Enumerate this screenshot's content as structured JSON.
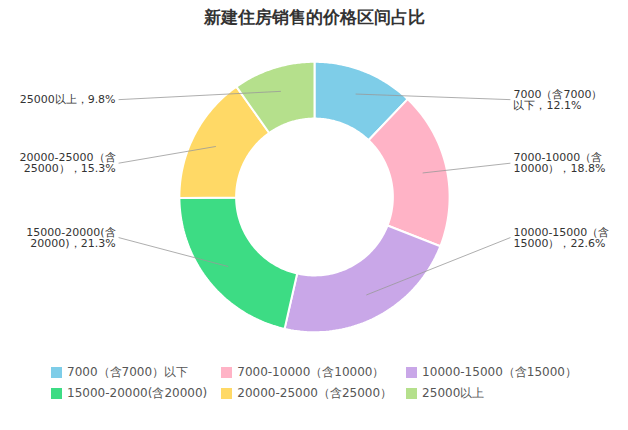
{
  "chart_data": {
    "type": "pie",
    "title": "新建住房销售的价格区间占比",
    "categories": [
      "7000（含7000）以下",
      "7000-10000（含10000）",
      "10000-15000（含15000）",
      "15000-20000(含20000)",
      "20000-25000（含25000）",
      "25000以上"
    ],
    "values": [
      12.1,
      18.8,
      22.6,
      21.3,
      15.3,
      9.8
    ],
    "colors": [
      "#7ecde8",
      "#ffb3c6",
      "#c9a7e8",
      "#3ddc84",
      "#ffd966",
      "#b5e08c"
    ],
    "annotations": [
      "7000（含7000）\n以下，12.1%",
      "7000-10000（含\n10000），18.8%",
      "10000-15000（含\n15000），22.6%",
      "15000-20000(含\n20000)，21.3%",
      "20000-25000（含\n25000），15.3%",
      "25000以上，9.8%"
    ],
    "legend": "bottom"
  }
}
